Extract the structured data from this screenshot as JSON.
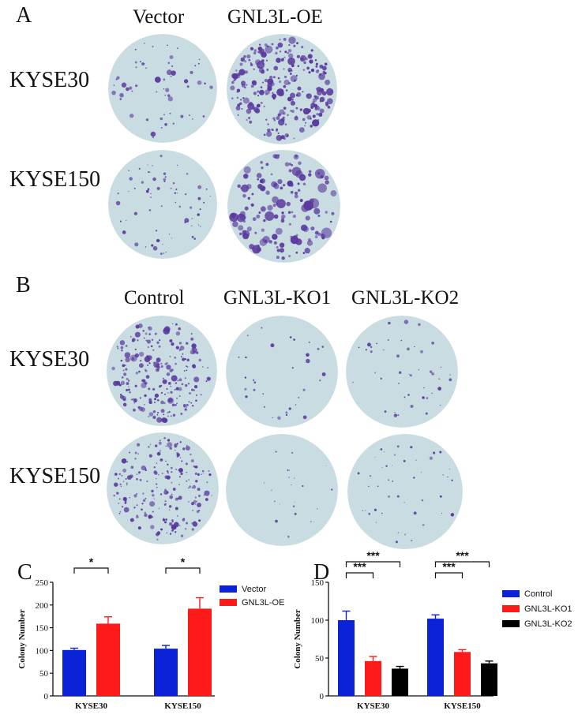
{
  "panel_a": {
    "letter": "A",
    "columns": [
      "Vector",
      "GNL3L-OE"
    ],
    "rows": [
      "KYSE30",
      "KYSE150"
    ]
  },
  "panel_b": {
    "letter": "B",
    "columns": [
      "Control",
      "GNL3L-KO1",
      "GNL3L-KO2"
    ],
    "rows": [
      "KYSE30",
      "KYSE150"
    ]
  },
  "colors": {
    "plate_bg": "#c9dce2",
    "colony": "#5b3a9e",
    "blue": "#0b22d6",
    "red": "#ff1a1a",
    "black": "#000000"
  },
  "chart_data": [
    {
      "panel": "C",
      "type": "bar",
      "title": "",
      "xlabel": "",
      "ylabel": "Colony Number",
      "ylim": [
        0,
        250
      ],
      "yticks": [
        0,
        50,
        100,
        150,
        200,
        250
      ],
      "categories": [
        "KYSE30",
        "KYSE150"
      ],
      "series": [
        {
          "name": "Vector",
          "color": "#0b22d6",
          "values": [
            101,
            104
          ],
          "errors": [
            4,
            7
          ]
        },
        {
          "name": "GNL3L-OE",
          "color": "#ff1a1a",
          "values": [
            159,
            192
          ],
          "errors": [
            15,
            24
          ]
        }
      ],
      "significance": [
        {
          "category": "KYSE30",
          "label": "*"
        },
        {
          "category": "KYSE150",
          "label": "*"
        }
      ],
      "legend": "top-right",
      "grid": false
    },
    {
      "panel": "D",
      "type": "bar",
      "title": "",
      "xlabel": "",
      "ylabel": "Colony Number",
      "ylim": [
        0,
        150
      ],
      "yticks": [
        0,
        50,
        100,
        150
      ],
      "categories": [
        "KYSE30",
        "KYSE150"
      ],
      "series": [
        {
          "name": "Control",
          "color": "#0b22d6",
          "values": [
            100,
            102
          ],
          "errors": [
            12,
            5
          ]
        },
        {
          "name": "GNL3L-KO1",
          "color": "#ff1a1a",
          "values": [
            46,
            58
          ],
          "errors": [
            6,
            3
          ]
        },
        {
          "name": "GNL3L-KO2",
          "color": "#000000",
          "values": [
            36,
            43
          ],
          "errors": [
            3,
            3
          ]
        }
      ],
      "significance": [
        {
          "category": "KYSE30",
          "label": "***",
          "compare": "Control vs GNL3L-KO1"
        },
        {
          "category": "KYSE30",
          "label": "***",
          "compare": "Control vs GNL3L-KO2"
        },
        {
          "category": "KYSE150",
          "label": "***",
          "compare": "Control vs GNL3L-KO1"
        },
        {
          "category": "KYSE150",
          "label": "***",
          "compare": "Control vs GNL3L-KO2"
        }
      ],
      "legend": "right",
      "grid": false
    }
  ]
}
